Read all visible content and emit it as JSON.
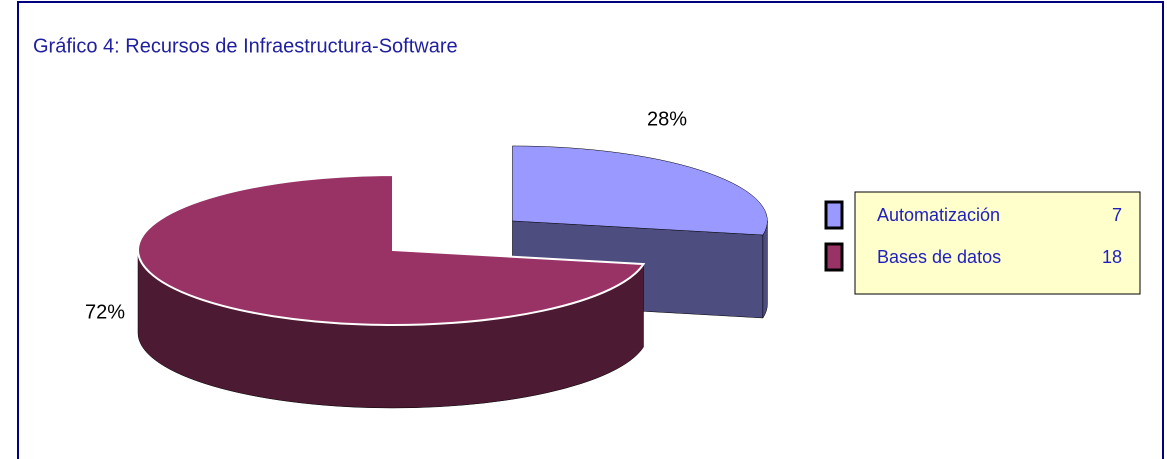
{
  "chart_data": {
    "type": "pie3d",
    "title": "Gráfico 4: Recursos de Infraestructura-Software",
    "categories": [
      "Automatización",
      "Bases de datos"
    ],
    "values": [
      28,
      72
    ],
    "value_labels": [
      "28%",
      "72%"
    ],
    "counts": [
      7,
      18
    ],
    "colors": [
      "#9999ff",
      "#993366"
    ]
  }
}
